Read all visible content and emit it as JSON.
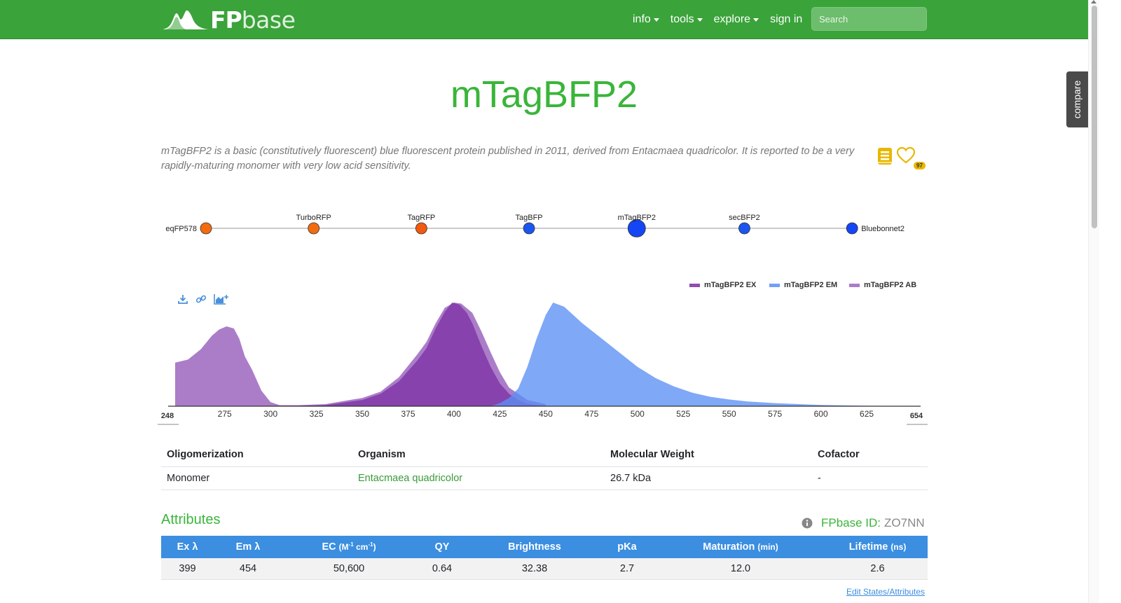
{
  "navbar": {
    "brand_fp": "FP",
    "brand_base": "base",
    "links": [
      {
        "label": "info",
        "dropdown": true
      },
      {
        "label": "tools",
        "dropdown": true
      },
      {
        "label": "explore",
        "dropdown": true
      },
      {
        "label": "sign in",
        "dropdown": false
      }
    ],
    "search_placeholder": "Search",
    "bg_color": "#3aa33a"
  },
  "compare_tab": "compare",
  "protein": {
    "name": "mTagBFP2",
    "description": "mTagBFP2 is a basic (constitutively fluorescent) blue fluorescent protein published in 2011, derived from Entacmaea quadricolor. It is reported to be a very rapidly-maturing monomer with very low acid sensitivity.",
    "favorite_count": "97",
    "icons": [
      "reference-book-icon",
      "favorite-heart-icon"
    ]
  },
  "lineage": [
    {
      "name": "eqFP578",
      "color": "#f26b0f",
      "current": false
    },
    {
      "name": "TurboRFP",
      "color": "#f26b0f",
      "current": false
    },
    {
      "name": "TagRFP",
      "color": "#f25a0f",
      "current": false
    },
    {
      "name": "TagBFP",
      "color": "#1a55f0",
      "current": false
    },
    {
      "name": "mTagBFP2",
      "color": "#1446f5",
      "current": true
    },
    {
      "name": "secBFP2",
      "color": "#1a55f0",
      "current": false
    },
    {
      "name": "Bluebonnet2",
      "color": "#1446f5",
      "current": false
    }
  ],
  "chart_data": {
    "type": "area",
    "xlim": [
      248,
      654
    ],
    "ylim": [
      0,
      1
    ],
    "x_ticks": [
      275,
      300,
      325,
      350,
      375,
      400,
      425,
      450,
      475,
      500,
      525,
      550,
      575,
      600,
      625
    ],
    "x_range_labels": [
      "248",
      "654"
    ],
    "legend_position": "top-right",
    "series": [
      {
        "name": "mTagBFP2 EX",
        "color": "#7b2fa3",
        "x": [
          310,
          330,
          350,
          360,
          370,
          380,
          385,
          390,
          395,
          399,
          403,
          407,
          410,
          415,
          420,
          425,
          430,
          435,
          440,
          450
        ],
        "y": [
          0,
          0.01,
          0.06,
          0.12,
          0.24,
          0.44,
          0.56,
          0.75,
          0.91,
          1.0,
          0.98,
          0.9,
          0.8,
          0.58,
          0.38,
          0.22,
          0.12,
          0.06,
          0.025,
          0
        ]
      },
      {
        "name": "mTagBFP2 EM",
        "color": "#5b8ff5",
        "x": [
          420,
          425,
          430,
          435,
          440,
          445,
          450,
          454,
          460,
          465,
          470,
          475,
          480,
          490,
          500,
          510,
          520,
          530,
          540,
          550,
          560,
          575,
          600,
          625,
          654
        ],
        "y": [
          0,
          0.03,
          0.08,
          0.17,
          0.38,
          0.65,
          0.88,
          1.0,
          0.96,
          0.88,
          0.8,
          0.73,
          0.66,
          0.52,
          0.38,
          0.27,
          0.19,
          0.13,
          0.09,
          0.065,
          0.045,
          0.03,
          0.012,
          0.004,
          0
        ]
      },
      {
        "name": "mTagBFP2 AB",
        "color": "#9c66c0",
        "x": [
          248,
          255,
          262,
          268,
          272,
          276,
          280,
          283,
          286,
          290,
          295,
          300,
          305,
          315,
          330,
          350,
          360,
          370,
          380,
          385,
          390,
          395,
          400,
          404,
          410,
          415,
          420,
          425,
          430,
          440,
          450
        ],
        "y": [
          0.42,
          0.45,
          0.55,
          0.68,
          0.74,
          0.77,
          0.75,
          0.65,
          0.48,
          0.35,
          0.15,
          0.04,
          0.01,
          0.01,
          0.02,
          0.08,
          0.14,
          0.28,
          0.5,
          0.62,
          0.8,
          0.95,
          1.0,
          0.99,
          0.9,
          0.72,
          0.52,
          0.33,
          0.18,
          0.06,
          0.02
        ]
      }
    ]
  },
  "spectra_toolbar": [
    "download-icon",
    "link-icon",
    "add-chart-icon"
  ],
  "info_table": {
    "headers": [
      "Oligomerization",
      "Organism",
      "Molecular Weight",
      "Cofactor"
    ],
    "row": [
      "Monomer",
      "Entacmaea quadricolor",
      "26.7 kDa",
      "-"
    ]
  },
  "attributes": {
    "heading": "Attributes",
    "fpbase_id_label": "FPbase ID:",
    "fpbase_id_value": "ZO7NN",
    "header_color": "#3b8ee0",
    "headers": [
      {
        "label": "Ex λ"
      },
      {
        "label": "Em λ"
      },
      {
        "label": "EC"
      },
      {
        "label": "QY"
      },
      {
        "label": "Brightness"
      },
      {
        "label": "pKa"
      },
      {
        "label": "Maturation",
        "unit": "(min)"
      },
      {
        "label": "Lifetime",
        "unit": "(ns)"
      }
    ],
    "values": [
      "399",
      "454",
      "50,600",
      "0.64",
      "32.38",
      "2.7",
      "12.0",
      "2.6"
    ],
    "ec_unit_a": "(M",
    "ec_unit_b": "-1",
    "ec_unit_c": " cm",
    "ec_unit_d": "-1",
    "ec_unit_e": ")",
    "edit_link": "Edit States/Attributes"
  }
}
